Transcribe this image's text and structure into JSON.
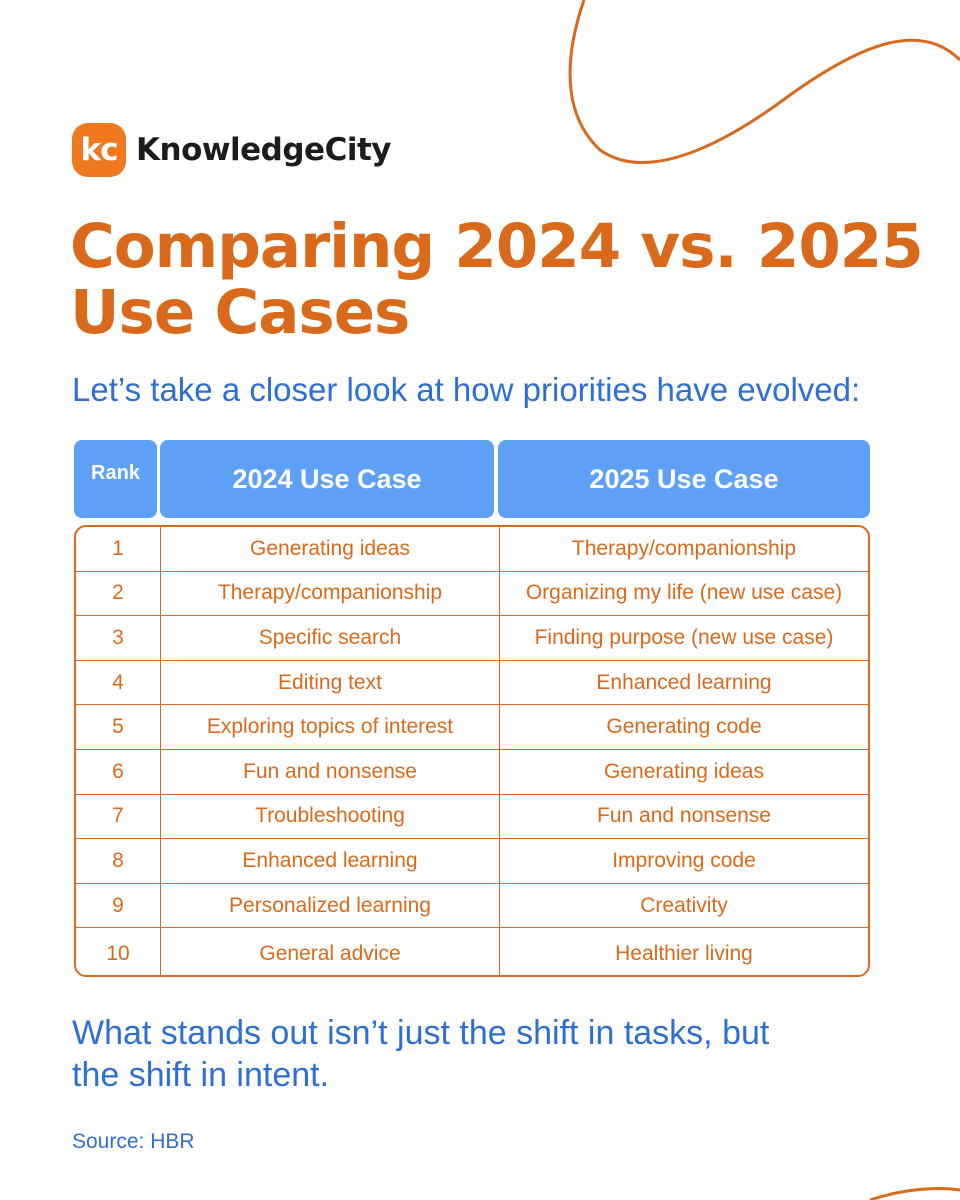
{
  "brand": {
    "mark": "kc",
    "name": "KnowledgeCity",
    "accent": "#f0781e"
  },
  "title": "Comparing 2024 vs. 2025 Use Cases",
  "subtitle": "Let’s take a closer look at how priorities have evolved:",
  "table": {
    "headers": {
      "rank": "Rank",
      "y2024": "2024 Use Case",
      "y2025": "2025 Use Case"
    },
    "rows": [
      {
        "rank": "1",
        "y2024": "Generating ideas",
        "y2025": "Therapy/companionship"
      },
      {
        "rank": "2",
        "y2024": "Therapy/companionship",
        "y2025": "Organizing my life (new use case)"
      },
      {
        "rank": "3",
        "y2024": "Specific search",
        "y2025": "Finding purpose (new use case)"
      },
      {
        "rank": "4",
        "y2024": "Editing text",
        "y2025": "Enhanced learning"
      },
      {
        "rank": "5",
        "y2024": "Exploring topics of interest",
        "y2025": "Generating code"
      },
      {
        "rank": "6",
        "y2024": "Fun and nonsense",
        "y2025": "Generating ideas"
      },
      {
        "rank": "7",
        "y2024": "Troubleshooting",
        "y2025": "Fun and nonsense"
      },
      {
        "rank": "8",
        "y2024": "Enhanced learning",
        "y2025": "Improving code"
      },
      {
        "rank": "9",
        "y2024": "Personalized learning",
        "y2025": "Creativity"
      },
      {
        "rank": "10",
        "y2024": "General advice",
        "y2025": "Healthier living"
      }
    ]
  },
  "closing": "What stands out isn’t just the shift in tasks, but the shift in intent.",
  "source": "Source: HBR",
  "colors": {
    "orange": "#d96a1c",
    "blue": "#2f6fd3",
    "header_blue": "#5ea0f5"
  }
}
